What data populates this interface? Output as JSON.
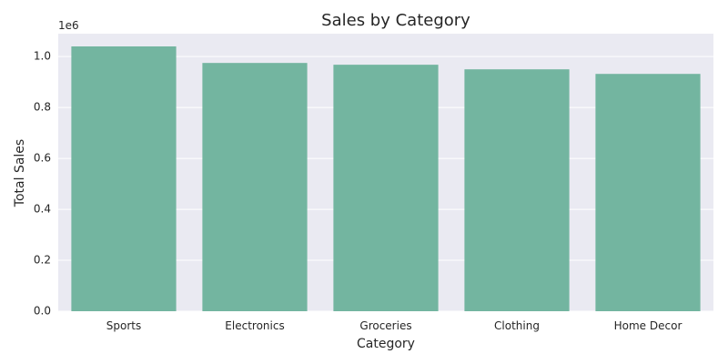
{
  "chart_data": {
    "type": "bar",
    "title": "Sales by Category",
    "xlabel": "Category",
    "ylabel": "Total Sales",
    "offset_label": "1e6",
    "categories": [
      "Sports",
      "Electronics",
      "Groceries",
      "Clothing",
      "Home Decor"
    ],
    "values": [
      1040000,
      975000,
      968000,
      950000,
      932000
    ],
    "ylim": [
      0,
      1090000
    ],
    "yticks": [
      0,
      200000,
      400000,
      600000,
      800000,
      1000000
    ],
    "ytick_labels": [
      "0.0",
      "0.2",
      "0.4",
      "0.6",
      "0.8",
      "1.0"
    ],
    "grid": true,
    "colors": {
      "bar": "#73b5a0",
      "plot_background": "#eaeaf2",
      "grid": "#ffffff"
    }
  }
}
